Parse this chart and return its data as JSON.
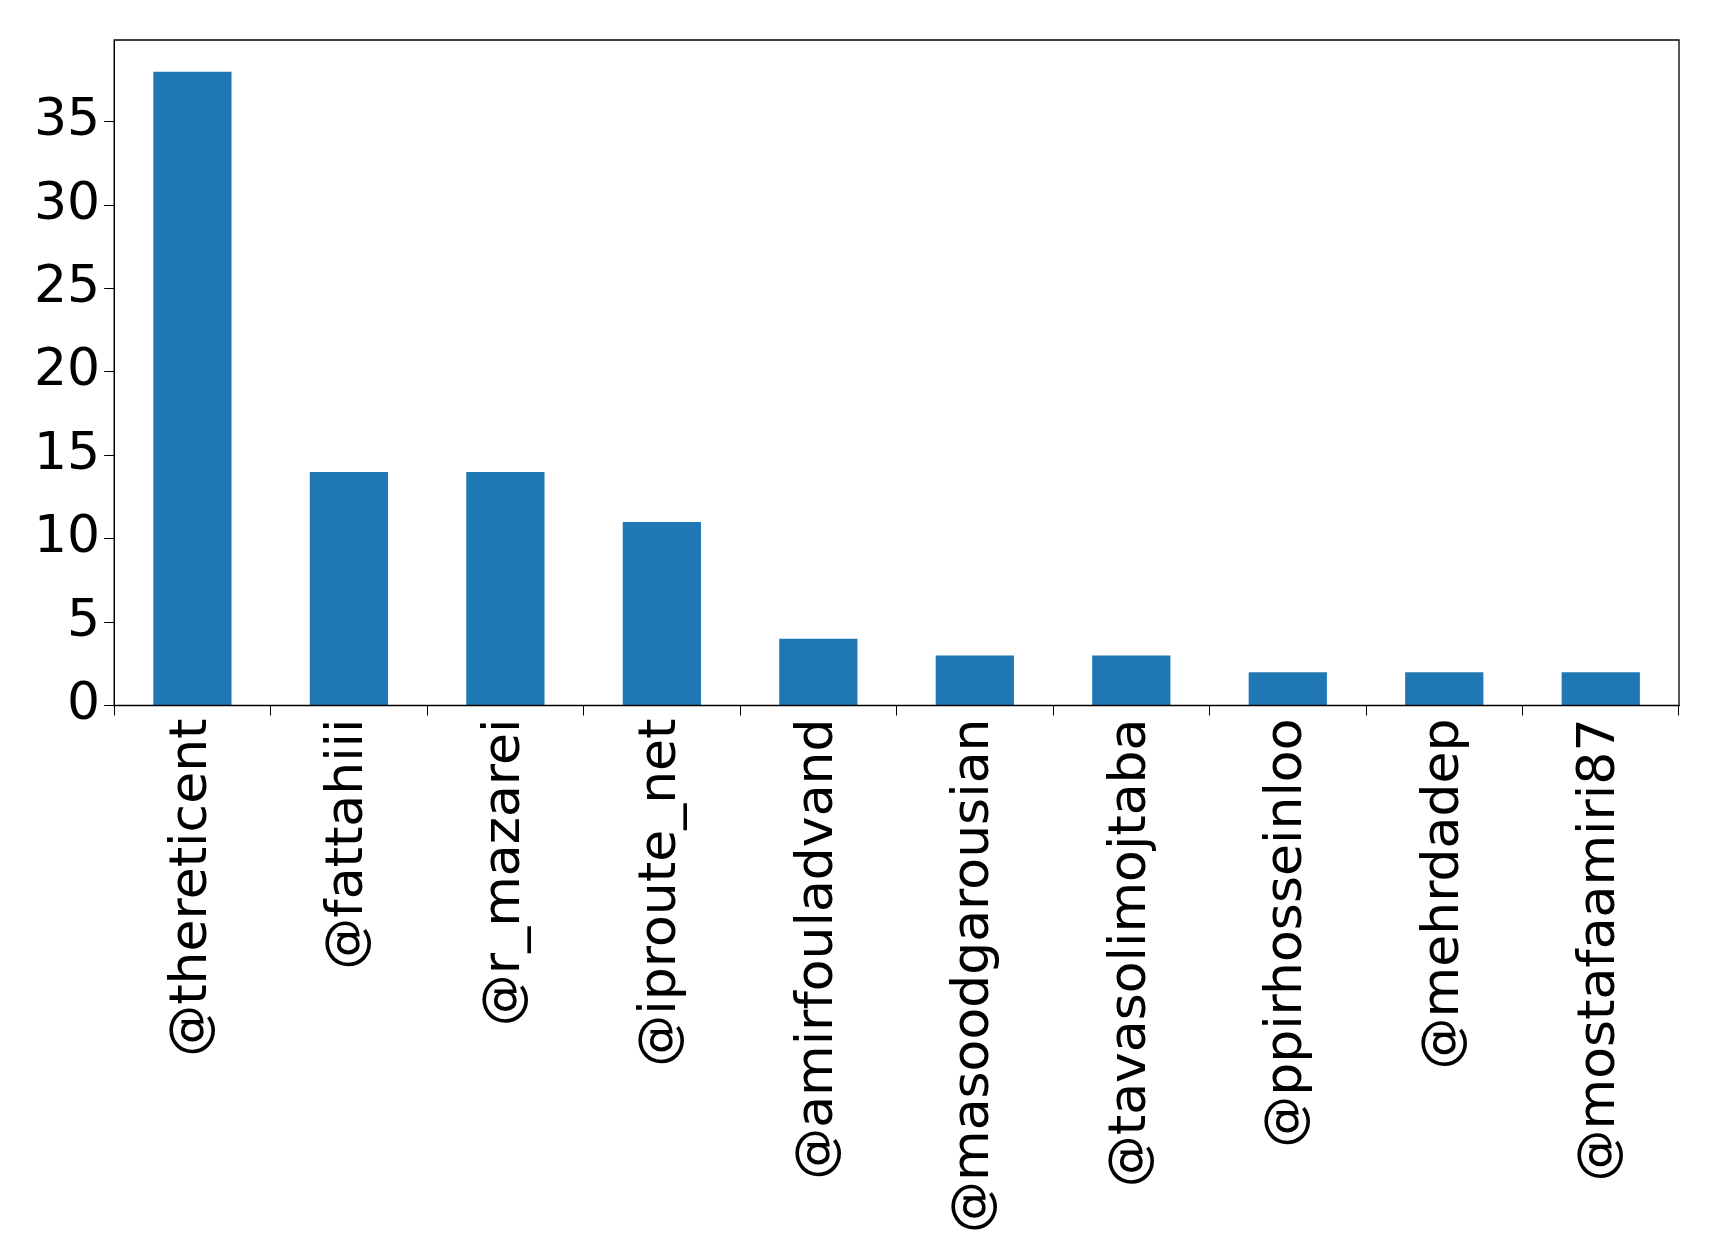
{
  "chart_data": {
    "type": "bar",
    "categories": [
      "@thereticent",
      "@fattahiii",
      "@r_mazarei",
      "@iproute_net",
      "@amirfouladvand",
      "@masoodgarousian",
      "@tavasolimojtaba",
      "@ppirhosseinloo",
      "@mehrdadep",
      "@mostafaamiri87"
    ],
    "values": [
      38,
      14,
      14,
      11,
      4,
      3,
      3,
      2,
      2,
      2
    ],
    "color": "#1f77b4",
    "ylim": [
      0,
      39.9
    ],
    "yticks": [
      0,
      5,
      10,
      15,
      20,
      25,
      30,
      35
    ],
    "grid": false,
    "legend": false
  }
}
